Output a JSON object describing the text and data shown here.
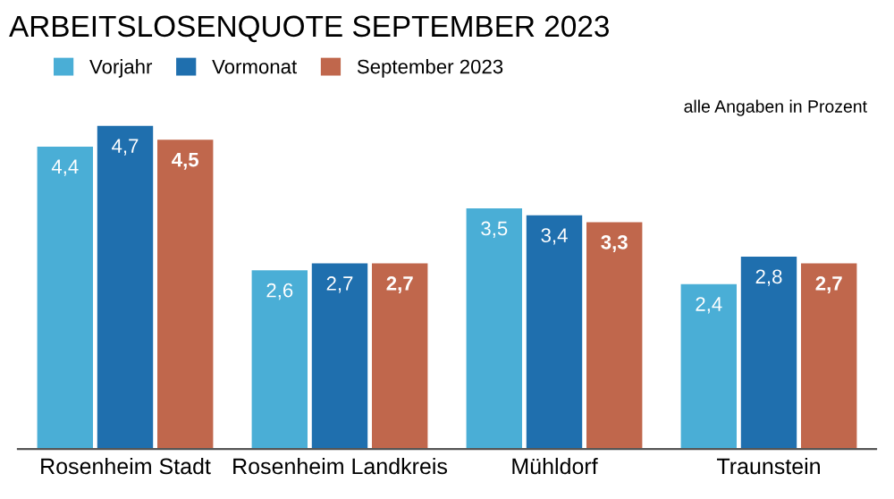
{
  "chart_data": {
    "type": "bar",
    "title": "ARBEITSLOSENQUOTE SEPTEMBER 2023",
    "categories": [
      "Rosenheim Stadt",
      "Rosenheim Landkreis",
      "Mühldorf",
      "Traunstein"
    ],
    "series": [
      {
        "name": "Vorjahr",
        "color": "#4aaed6",
        "values": [
          4.4,
          2.6,
          3.5,
          2.4
        ],
        "value_labels": [
          "4,4",
          "2,6",
          "3,5",
          "2,4"
        ]
      },
      {
        "name": "Vormonat",
        "color": "#1f6fae",
        "values": [
          4.7,
          2.7,
          3.4,
          2.8
        ],
        "value_labels": [
          "4,7",
          "2,7",
          "3,4",
          "2,8"
        ]
      },
      {
        "name": "September 2023",
        "color": "#c0674c",
        "values": [
          4.5,
          2.7,
          3.3,
          2.7
        ],
        "value_labels": [
          "4,5",
          "2,7",
          "3,3",
          "2,7"
        ]
      }
    ],
    "annotations": [
      "alle Angaben in Prozent"
    ],
    "legend": "top left",
    "grid": false
  }
}
